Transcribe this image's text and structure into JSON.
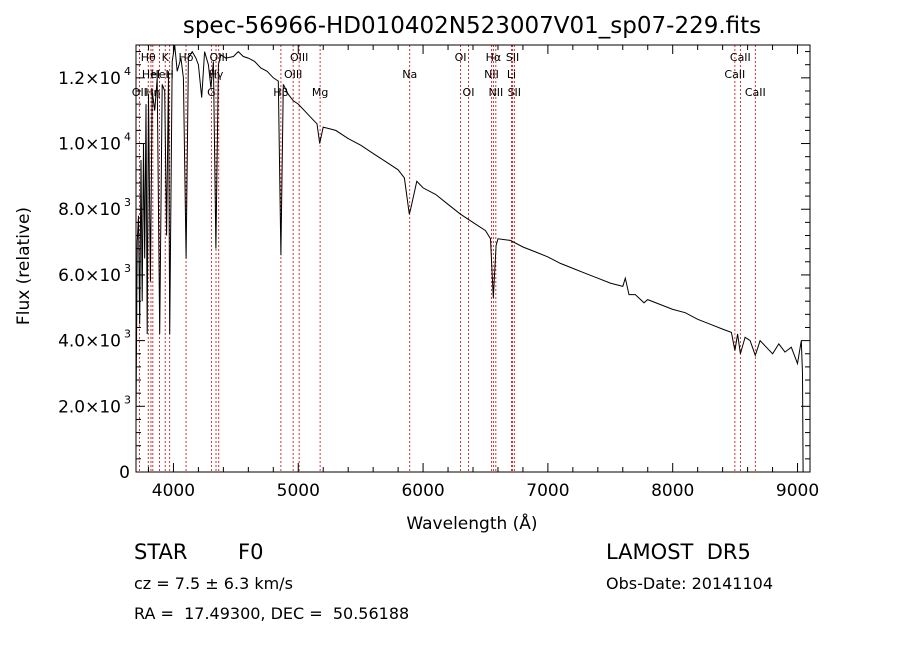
{
  "chart_data": {
    "type": "line",
    "title": "spec-56966-HD010402N523007V01_sp07-229.fits",
    "xlabel": "Wavelength (Å)",
    "ylabel": "Flux (relative)",
    "xlim": [
      3700,
      9100
    ],
    "ylim": [
      0,
      13000
    ],
    "x_ticks": [
      {
        "value": 4000,
        "label": "4000"
      },
      {
        "value": 5000,
        "label": "5000"
      },
      {
        "value": 6000,
        "label": "6000"
      },
      {
        "value": 7000,
        "label": "7000"
      },
      {
        "value": 8000,
        "label": "8000"
      },
      {
        "value": 9000,
        "label": "9000"
      }
    ],
    "y_ticks": [
      {
        "value": 0,
        "mant": "0",
        "exp": ""
      },
      {
        "value": 2000,
        "mant": "2.0×10",
        "exp": "3"
      },
      {
        "value": 4000,
        "mant": "4.0×10",
        "exp": "3"
      },
      {
        "value": 6000,
        "mant": "6.0×10",
        "exp": "3"
      },
      {
        "value": 8000,
        "mant": "8.0×10",
        "exp": "3"
      },
      {
        "value": 10000,
        "mant": "1.0×10",
        "exp": "4"
      },
      {
        "value": 12000,
        "mant": "1.2×10",
        "exp": "4"
      }
    ],
    "series": [
      {
        "points": [
          [
            3700,
            1500
          ],
          [
            3710,
            7000
          ],
          [
            3720,
            7800
          ],
          [
            3730,
            4500
          ],
          [
            3740,
            9500
          ],
          [
            3750,
            5200
          ],
          [
            3760,
            10000
          ],
          [
            3770,
            6500
          ],
          [
            3780,
            11200
          ],
          [
            3790,
            4200
          ],
          [
            3800,
            11500
          ],
          [
            3815,
            5800
          ],
          [
            3830,
            11600
          ],
          [
            3850,
            11000
          ],
          [
            3870,
            12000
          ],
          [
            3890,
            4200
          ],
          [
            3910,
            11800
          ],
          [
            3930,
            11600
          ],
          [
            3945,
            7200
          ],
          [
            3960,
            12200
          ],
          [
            3970,
            4200
          ],
          [
            3990,
            12500
          ],
          [
            4010,
            13000
          ],
          [
            4030,
            12200
          ],
          [
            4060,
            12600
          ],
          [
            4080,
            12000
          ],
          [
            4101,
            6500
          ],
          [
            4120,
            12600
          ],
          [
            4150,
            12800
          ],
          [
            4180,
            12600
          ],
          [
            4200,
            12400
          ],
          [
            4226,
            11400
          ],
          [
            4250,
            12800
          ],
          [
            4280,
            12400
          ],
          [
            4300,
            11700
          ],
          [
            4320,
            12500
          ],
          [
            4340,
            6800
          ],
          [
            4360,
            12400
          ],
          [
            4380,
            12700
          ],
          [
            4420,
            12600
          ],
          [
            4480,
            12650
          ],
          [
            4520,
            12800
          ],
          [
            4560,
            12650
          ],
          [
            4600,
            12600
          ],
          [
            4650,
            12500
          ],
          [
            4700,
            12300
          ],
          [
            4750,
            12200
          ],
          [
            4800,
            12000
          ],
          [
            4840,
            11900
          ],
          [
            4861,
            6600
          ],
          [
            4880,
            11800
          ],
          [
            4920,
            11500
          ],
          [
            4960,
            11300
          ],
          [
            5000,
            11200
          ],
          [
            5050,
            11000
          ],
          [
            5100,
            10800
          ],
          [
            5150,
            10600
          ],
          [
            5172,
            10000
          ],
          [
            5200,
            10500
          ],
          [
            5300,
            10400
          ],
          [
            5400,
            10150
          ],
          [
            5500,
            9950
          ],
          [
            5600,
            9700
          ],
          [
            5700,
            9450
          ],
          [
            5800,
            9200
          ],
          [
            5850,
            8950
          ],
          [
            5890,
            7850
          ],
          [
            5900,
            8000
          ],
          [
            5950,
            8850
          ],
          [
            6000,
            8650
          ],
          [
            6100,
            8450
          ],
          [
            6200,
            8150
          ],
          [
            6300,
            7850
          ],
          [
            6400,
            7600
          ],
          [
            6500,
            7350
          ],
          [
            6540,
            7100
          ],
          [
            6563,
            5300
          ],
          [
            6585,
            6900
          ],
          [
            6600,
            7100
          ],
          [
            6700,
            7050
          ],
          [
            6800,
            6850
          ],
          [
            6900,
            6700
          ],
          [
            7000,
            6550
          ],
          [
            7100,
            6350
          ],
          [
            7200,
            6200
          ],
          [
            7300,
            6050
          ],
          [
            7400,
            5900
          ],
          [
            7500,
            5750
          ],
          [
            7600,
            5650
          ],
          [
            7620,
            5900
          ],
          [
            7650,
            5400
          ],
          [
            7700,
            5400
          ],
          [
            7770,
            5150
          ],
          [
            7800,
            5250
          ],
          [
            7900,
            5100
          ],
          [
            8000,
            4950
          ],
          [
            8100,
            4850
          ],
          [
            8200,
            4650
          ],
          [
            8300,
            4500
          ],
          [
            8400,
            4350
          ],
          [
            8470,
            4250
          ],
          [
            8498,
            3700
          ],
          [
            8520,
            4200
          ],
          [
            8542,
            3600
          ],
          [
            8580,
            4100
          ],
          [
            8620,
            4000
          ],
          [
            8662,
            3550
          ],
          [
            8700,
            4000
          ],
          [
            8750,
            3800
          ],
          [
            8800,
            3600
          ],
          [
            8850,
            3900
          ],
          [
            8900,
            3650
          ],
          [
            8950,
            3800
          ],
          [
            9000,
            3300
          ],
          [
            9030,
            4000
          ],
          [
            9040,
            3000
          ],
          [
            9045,
            0
          ]
        ]
      }
    ],
    "line_markers": [
      {
        "wave": 3727,
        "labels": [
          "OII"
        ],
        "row": 3
      },
      {
        "wave": 3798,
        "labels": [
          "Hθ"
        ],
        "row": 1
      },
      {
        "wave": 3820,
        "labels": [
          "HeI"
        ],
        "row": 2
      },
      {
        "wave": 3835,
        "labels": [
          "Hη"
        ],
        "row": 3
      },
      {
        "wave": 3889,
        "labels": [
          "HeI"
        ],
        "row": 2
      },
      {
        "wave": 3934,
        "labels": [
          "K"
        ],
        "row": 1
      },
      {
        "wave": 3970,
        "labels": [
          "H"
        ],
        "row": 2
      },
      {
        "wave": 4101,
        "labels": [
          "Hδ"
        ],
        "row": 1
      },
      {
        "wave": 4304,
        "labels": [
          "G"
        ],
        "row": 3
      },
      {
        "wave": 4341,
        "labels": [
          "Hγ"
        ],
        "row": 2
      },
      {
        "wave": 4363,
        "labels": [
          "OIII"
        ],
        "row": 1
      },
      {
        "wave": 4861,
        "labels": [
          "Hβ"
        ],
        "row": 3
      },
      {
        "wave": 4959,
        "labels": [
          "OIII"
        ],
        "row": 2
      },
      {
        "wave": 5007,
        "labels": [
          "OIII"
        ],
        "row": 1
      },
      {
        "wave": 5175,
        "labels": [
          "Mg"
        ],
        "row": 3
      },
      {
        "wave": 5893,
        "labels": [
          "Na"
        ],
        "row": 2
      },
      {
        "wave": 6300,
        "labels": [
          "OI"
        ],
        "row": 1
      },
      {
        "wave": 6364,
        "labels": [
          "OI"
        ],
        "row": 3
      },
      {
        "wave": 6548,
        "labels": [
          "NII"
        ],
        "row": 2
      },
      {
        "wave": 6563,
        "labels": [
          "Hα"
        ],
        "row": 1
      },
      {
        "wave": 6583,
        "labels": [
          "NII"
        ],
        "row": 3
      },
      {
        "wave": 6708,
        "labels": [
          "Li"
        ],
        "row": 2
      },
      {
        "wave": 6717,
        "labels": [
          "SII"
        ],
        "row": 1
      },
      {
        "wave": 6731,
        "labels": [
          "SII"
        ],
        "row": 3
      },
      {
        "wave": 8498,
        "labels": [
          "CaII"
        ],
        "row": 2
      },
      {
        "wave": 8542,
        "labels": [
          "CaII"
        ],
        "row": 1
      },
      {
        "wave": 8662,
        "labels": [
          "CaII"
        ],
        "row": 3
      }
    ],
    "colors": {
      "spectrum": "#000000",
      "markers": "#cc0000",
      "axes": "#000000"
    }
  },
  "info": {
    "class": "STAR",
    "subclass": "F0",
    "survey": "LAMOST  DR5",
    "cz": "cz = 7.5 ± 6.3 km/s",
    "obs_date": "Obs-Date: 20141104",
    "coords": "RA =  17.49300, DEC =  50.56188"
  }
}
